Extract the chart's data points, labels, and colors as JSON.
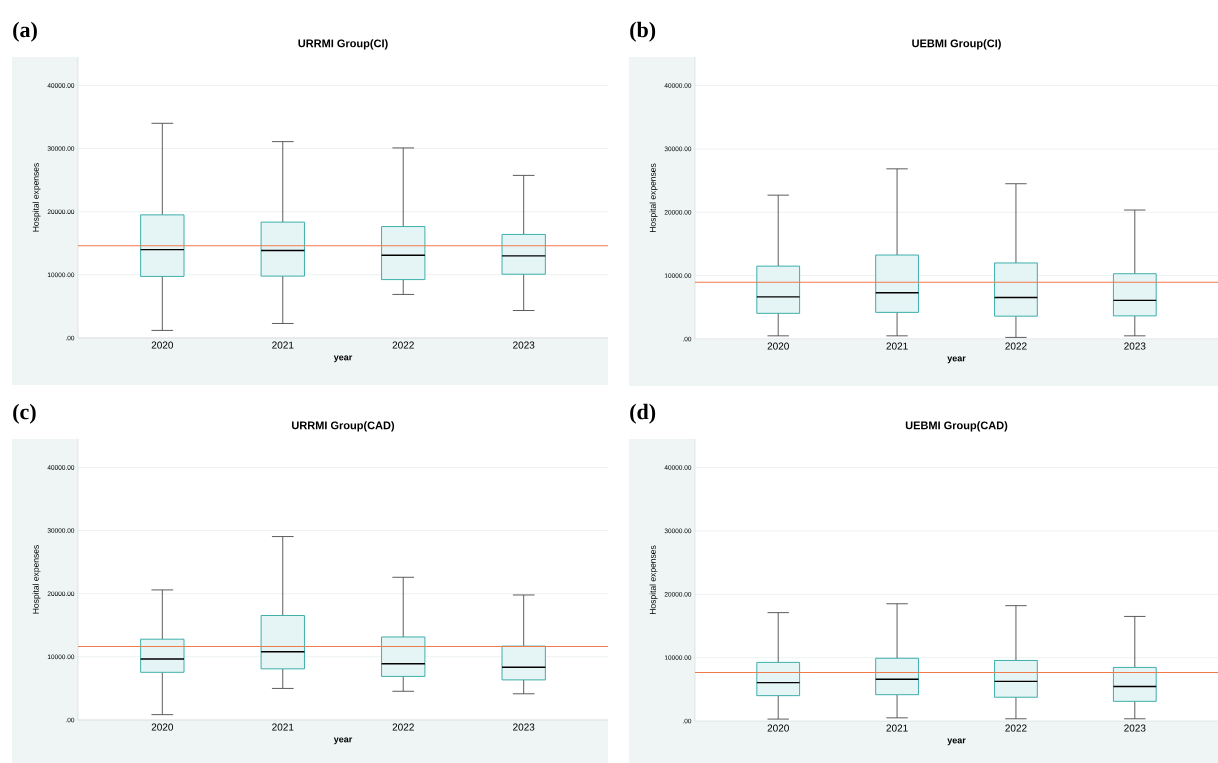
{
  "chart_data": [
    {
      "type": "box",
      "title": "URRMI Group(CI)",
      "xlabel": "year",
      "ylabel": "Hospital expenses",
      "annotations": [
        "(a)"
      ],
      "categories": [
        "2020",
        "2021",
        "2022",
        "2023"
      ],
      "color": "#2aa7a3",
      "boxes": [
        {
          "low": 1200,
          "q1": 9750,
          "median": 14000,
          "q3": 19500,
          "high": 34000
        },
        {
          "low": 2300,
          "q1": 9800,
          "median": 13850,
          "q3": 18350,
          "high": 31100
        },
        {
          "low": 6900,
          "q1": 9250,
          "median": 13100,
          "q3": 17650,
          "high": 30100
        },
        {
          "low": 4350,
          "q1": 10100,
          "median": 13000,
          "q3": 16400,
          "high": 25750
        }
      ],
      "ref_lines": [
        {
          "axis": "y",
          "value": 14600,
          "color": "#ef7a4c"
        }
      ],
      "ylim": [
        0,
        44500
      ],
      "yticks": [
        {
          "value": 0,
          "label": ".00"
        },
        {
          "value": 10000,
          "label": "10000.00"
        },
        {
          "value": 20000,
          "label": "20000.00"
        },
        {
          "value": 30000,
          "label": "30000.00"
        },
        {
          "value": 40000,
          "label": "40000.00"
        }
      ],
      "grid": "y"
    },
    {
      "type": "box",
      "title": "UEBMI Group(CI)",
      "xlabel": "year",
      "ylabel": "Hospital expenses",
      "annotations": [
        "(b)"
      ],
      "categories": [
        "2020",
        "2021",
        "2022",
        "2023"
      ],
      "color": "#2aa7a3",
      "boxes": [
        {
          "low": 500,
          "q1": 4050,
          "median": 6650,
          "q3": 11500,
          "high": 22700
        },
        {
          "low": 500,
          "q1": 4200,
          "median": 7300,
          "q3": 13250,
          "high": 26850
        },
        {
          "low": 250,
          "q1": 3600,
          "median": 6550,
          "q3": 12000,
          "high": 24500
        },
        {
          "low": 500,
          "q1": 3650,
          "median": 6100,
          "q3": 10300,
          "high": 20350
        }
      ],
      "ref_lines": [
        {
          "axis": "y",
          "value": 8950,
          "color": "#ef7a4c"
        }
      ],
      "ylim": [
        0,
        44500
      ],
      "yticks": [
        {
          "value": 0,
          "label": ".00"
        },
        {
          "value": 10000,
          "label": "10000.00"
        },
        {
          "value": 20000,
          "label": "20000.00"
        },
        {
          "value": 30000,
          "label": "30000.00"
        },
        {
          "value": 40000,
          "label": "40000.00"
        }
      ],
      "grid": "y"
    },
    {
      "type": "box",
      "title": "URRMI Group(CAD)",
      "xlabel": "year",
      "ylabel": "Hospital expenses",
      "annotations": [
        "(c)"
      ],
      "categories": [
        "2020",
        "2021",
        "2022",
        "2023"
      ],
      "color": "#2aa7a3",
      "boxes": [
        {
          "low": 850,
          "q1": 7550,
          "median": 9650,
          "q3": 12800,
          "high": 20600
        },
        {
          "low": 5000,
          "q1": 8100,
          "median": 10800,
          "q3": 16550,
          "high": 29050
        },
        {
          "low": 4550,
          "q1": 6900,
          "median": 8900,
          "q3": 13150,
          "high": 22600
        },
        {
          "low": 4150,
          "q1": 6350,
          "median": 8350,
          "q3": 11700,
          "high": 19800
        }
      ],
      "ref_lines": [
        {
          "axis": "y",
          "value": 11650,
          "color": "#ef7a4c"
        }
      ],
      "ylim": [
        0,
        44500
      ],
      "yticks": [
        {
          "value": 0,
          "label": ".00"
        },
        {
          "value": 10000,
          "label": "10000.00"
        },
        {
          "value": 20000,
          "label": "20000.00"
        },
        {
          "value": 30000,
          "label": "30000.00"
        },
        {
          "value": 40000,
          "label": "40000.00"
        }
      ],
      "grid": "y"
    },
    {
      "type": "box",
      "title": "UEBMI Group(CAD)",
      "xlabel": "year",
      "ylabel": "Hospital expenses",
      "annotations": [
        "(d)"
      ],
      "categories": [
        "2020",
        "2021",
        "2022",
        "2023"
      ],
      "color": "#2aa7a3",
      "boxes": [
        {
          "low": 300,
          "q1": 4000,
          "median": 6050,
          "q3": 9250,
          "high": 17100
        },
        {
          "low": 500,
          "q1": 4150,
          "median": 6600,
          "q3": 9900,
          "high": 18500
        },
        {
          "low": 350,
          "q1": 3750,
          "median": 6250,
          "q3": 9550,
          "high": 18200
        },
        {
          "low": 350,
          "q1": 3100,
          "median": 5450,
          "q3": 8450,
          "high": 16500
        }
      ],
      "ref_lines": [
        {
          "axis": "y",
          "value": 7650,
          "color": "#ef7a4c"
        }
      ],
      "ylim": [
        0,
        44500
      ],
      "yticks": [
        {
          "value": 0,
          "label": ".00"
        },
        {
          "value": 10000,
          "label": "10000.00"
        },
        {
          "value": 20000,
          "label": "20000.00"
        },
        {
          "value": 30000,
          "label": "30000.00"
        },
        {
          "value": 40000,
          "label": "40000.00"
        }
      ],
      "grid": "y"
    }
  ]
}
